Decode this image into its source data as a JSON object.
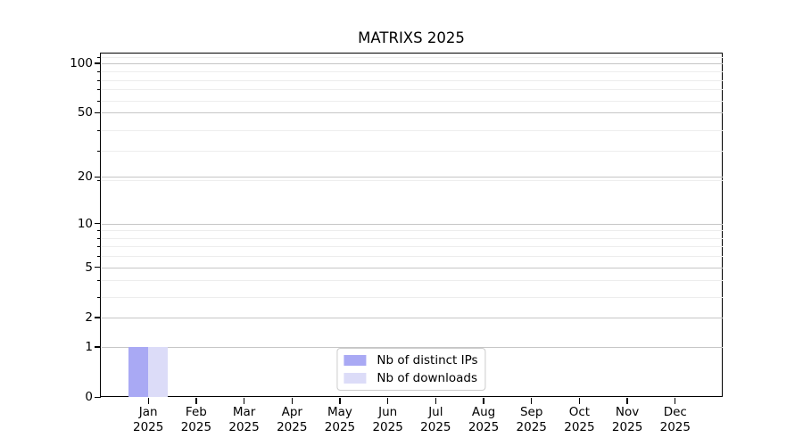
{
  "title": "MATRIXS 2025",
  "chart_data": {
    "type": "bar",
    "title": "MATRIXS 2025",
    "categories": [
      "Jan 2025",
      "Feb 2025",
      "Mar 2025",
      "Apr 2025",
      "May 2025",
      "Jun 2025",
      "Jul 2025",
      "Aug 2025",
      "Sep 2025",
      "Oct 2025",
      "Nov 2025",
      "Dec 2025"
    ],
    "series": [
      {
        "name": "Nb of distinct IPs",
        "color": "#a9a9f4",
        "values": [
          1,
          0,
          0,
          0,
          0,
          0,
          0,
          0,
          0,
          0,
          0,
          0
        ]
      },
      {
        "name": "Nb of downloads",
        "color": "#dcdcf8",
        "values": [
          1,
          0,
          0,
          0,
          0,
          0,
          0,
          0,
          0,
          0,
          0,
          0
        ]
      }
    ],
    "y_axis": {
      "scale": "log10(value+1)",
      "tick_values": [
        0,
        1,
        2,
        5,
        10,
        20,
        50,
        100
      ],
      "tick_labels": [
        "0",
        "1",
        "2",
        "5",
        "10",
        "20",
        "50",
        "100"
      ],
      "minor_values": [
        3,
        4,
        6,
        7,
        8,
        9,
        19,
        29,
        39,
        59,
        69,
        79,
        89,
        109
      ],
      "max": 115
    },
    "xlabel": "",
    "ylabel": "",
    "grid": "horizontal major and minor gridlines",
    "legend_position": "bottom-center inside plot",
    "colors": {
      "grid_major": "#c6c6c6",
      "grid_minor": "#ededed",
      "spine": "#000000",
      "background": "#ffffff"
    }
  }
}
